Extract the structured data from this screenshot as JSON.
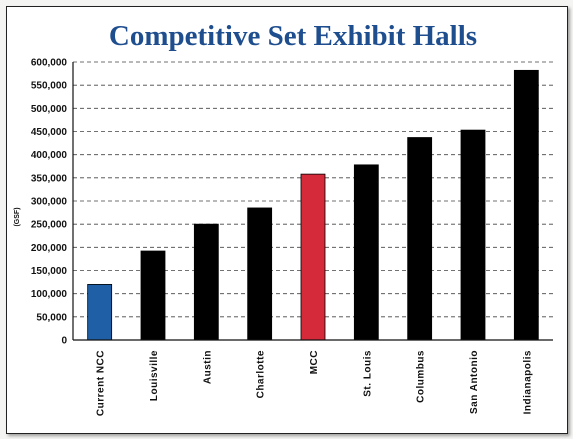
{
  "chart_data": {
    "type": "bar",
    "title": "Competitive Set Exhibit Halls",
    "ylabel": "(GSF)",
    "xlabel": "",
    "categories": [
      "Current NCC",
      "Louisville",
      "Austin",
      "Charlotte",
      "MCC",
      "St. Louis",
      "Columbus",
      "San Antonio",
      "Indianapolis"
    ],
    "values": [
      120000,
      192000,
      250000,
      285000,
      358000,
      378000,
      437000,
      453000,
      582000
    ],
    "bar_colors": [
      "#1f5fa6",
      "#000000",
      "#000000",
      "#000000",
      "#d42a3a",
      "#000000",
      "#000000",
      "#000000",
      "#000000"
    ],
    "ylim": [
      0,
      600000
    ],
    "yticks": [
      0,
      50000,
      100000,
      150000,
      200000,
      250000,
      300000,
      350000,
      400000,
      450000,
      500000,
      550000,
      600000
    ],
    "ytick_labels": [
      "0",
      "50,000",
      "100,000",
      "150,000",
      "200,000",
      "250,000",
      "300,000",
      "350,000",
      "400,000",
      "450,000",
      "500,000",
      "550,000",
      "600,000"
    ],
    "grid": true,
    "legend": "none"
  }
}
